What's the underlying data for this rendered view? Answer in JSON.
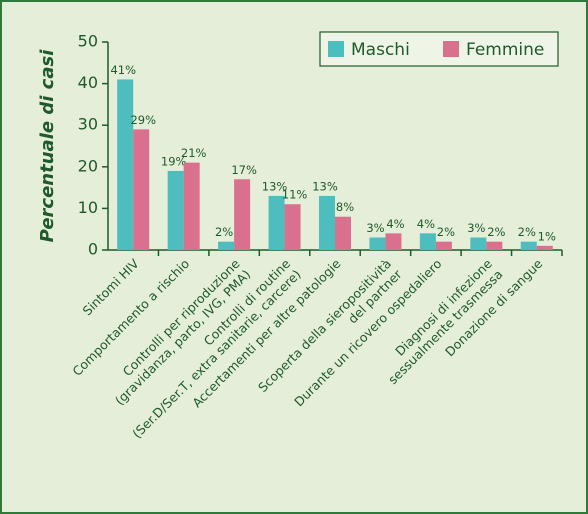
{
  "chart_data": {
    "type": "bar",
    "ylabel": "Percentuale di casi",
    "categories": [
      [
        "Sintomi HIV"
      ],
      [
        "Comportamento a rischio"
      ],
      [
        "Controlli per riproduzione",
        "(gravidanza, parto, IVG, PMA)"
      ],
      [
        "Controlli di routine",
        "(Ser.D/Ser.T, extra sanitarie, carcere)"
      ],
      [
        "Accertamenti per altre patologie"
      ],
      [
        "Scoperta della sieropositività",
        "del partner"
      ],
      [
        "Durante un ricovero ospedaliero"
      ],
      [
        "Diagnosi di infezione",
        "sessualmente trasmessa"
      ],
      [
        "Donazione di sangue"
      ]
    ],
    "series": [
      {
        "name": "Maschi",
        "color": "#4dbdbd",
        "values": [
          41,
          19,
          2,
          13,
          13,
          3,
          4,
          3,
          2
        ],
        "value_labels": [
          "41%",
          "19%",
          "2%",
          "13%",
          "13%",
          "3%",
          "4%",
          "3%",
          "2%"
        ]
      },
      {
        "name": "Femmine",
        "color": "#d9708e",
        "values": [
          29,
          21,
          17,
          11,
          8,
          4,
          2,
          2,
          1
        ],
        "value_labels": [
          "29%",
          "21%",
          "17%",
          "11%",
          "8%",
          "4%",
          "2%",
          "2%",
          "1%"
        ]
      }
    ],
    "ylim": [
      0,
      50
    ],
    "yticks": [
      0,
      10,
      20,
      30,
      40,
      50
    ],
    "legend": "top-right"
  }
}
